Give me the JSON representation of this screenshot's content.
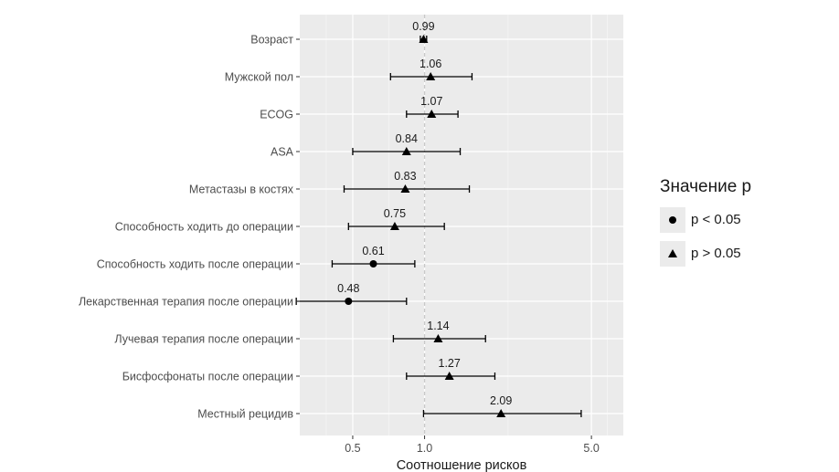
{
  "chart_data": {
    "type": "scatter",
    "subtype": "forest-plot",
    "xlabel": "Соотношение рисков",
    "x_scale": "log",
    "xlim": [
      0.3,
      6.8
    ],
    "x_ticks": [
      0.5,
      1.0,
      5.0
    ],
    "x_tick_labels": [
      "0.5",
      "1.0",
      "5.0"
    ],
    "reference_line": 1.0,
    "grid": true,
    "legend_position": "right",
    "legend_title": "Значение p",
    "legend": [
      {
        "label": "p < 0.05",
        "shape": "circle"
      },
      {
        "label": "p > 0.05",
        "shape": "triangle"
      }
    ],
    "rows": [
      {
        "label": "Возраст",
        "hr": 0.99,
        "ci": [
          0.96,
          1.02
        ],
        "shape": "triangle",
        "value_label": "0.99"
      },
      {
        "label": "Мужской пол",
        "hr": 1.06,
        "ci": [
          0.72,
          1.58
        ],
        "shape": "triangle",
        "value_label": "1.06"
      },
      {
        "label": "ECOG",
        "hr": 1.07,
        "ci": [
          0.84,
          1.38
        ],
        "shape": "triangle",
        "value_label": "1.07"
      },
      {
        "label": "ASA",
        "hr": 0.84,
        "ci": [
          0.5,
          1.41
        ],
        "shape": "triangle",
        "value_label": "0.84"
      },
      {
        "label": "Метастазы в костях",
        "hr": 0.83,
        "ci": [
          0.46,
          1.54
        ],
        "shape": "triangle",
        "value_label": "0.83"
      },
      {
        "label": "Способность ходить до операции",
        "hr": 0.75,
        "ci": [
          0.48,
          1.21
        ],
        "shape": "triangle",
        "value_label": "0.75"
      },
      {
        "label": "Способность ходить после операции",
        "hr": 0.61,
        "ci": [
          0.41,
          0.91
        ],
        "shape": "circle",
        "value_label": "0.61"
      },
      {
        "label": "Лекарственная терапия после операции",
        "hr": 0.48,
        "ci": [
          0.29,
          0.84
        ],
        "shape": "circle",
        "value_label": "0.48"
      },
      {
        "label": "Лучевая терапия после операции",
        "hr": 1.14,
        "ci": [
          0.74,
          1.8
        ],
        "shape": "triangle",
        "value_label": "1.14"
      },
      {
        "label": "Бисфосфонаты после операции",
        "hr": 1.27,
        "ci": [
          0.84,
          1.97
        ],
        "shape": "triangle",
        "value_label": "1.27"
      },
      {
        "label": "Местный рецидив",
        "hr": 2.09,
        "ci": [
          0.99,
          4.53
        ],
        "shape": "triangle",
        "value_label": "2.09"
      }
    ]
  },
  "colors": {
    "panel_background": "#ebebeb",
    "grid_major": "#ffffff",
    "grid_minor": "#f5f5f5",
    "reference_line": "#c8c8c8",
    "points": "#000000",
    "axis_text": "#4d4d4d"
  }
}
